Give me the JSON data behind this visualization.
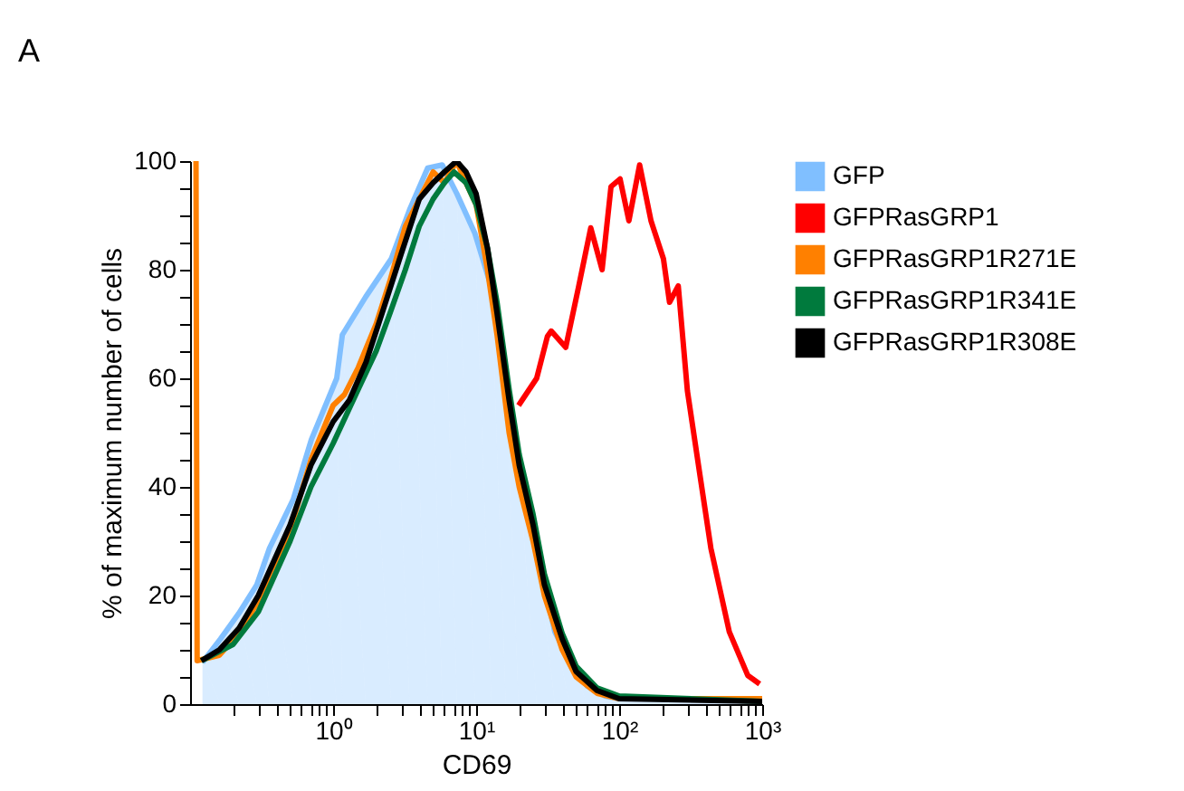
{
  "chart_data": {
    "type": "line",
    "title": "A",
    "xlabel": "CD69",
    "ylabel": "% of maximum number of cells",
    "log": "x",
    "xlim": [
      0.1,
      1000
    ],
    "ylim": [
      0,
      100
    ],
    "xticks": [
      {
        "value": 0.2,
        "label": null
      },
      {
        "value": 0.3,
        "label": null
      },
      {
        "value": 0.4,
        "label": null
      },
      {
        "value": 0.5,
        "label": null
      },
      {
        "value": 0.6,
        "label": null
      },
      {
        "value": 0.7,
        "label": null
      },
      {
        "value": 0.8,
        "label": null
      },
      {
        "value": 0.9,
        "label": null
      },
      {
        "value": 1,
        "label": "10⁰"
      },
      {
        "value": 2,
        "label": null
      },
      {
        "value": 3,
        "label": null
      },
      {
        "value": 4,
        "label": null
      },
      {
        "value": 5,
        "label": null
      },
      {
        "value": 6,
        "label": null
      },
      {
        "value": 7,
        "label": null
      },
      {
        "value": 8,
        "label": null
      },
      {
        "value": 9,
        "label": null
      },
      {
        "value": 10,
        "label": "10¹"
      },
      {
        "value": 20,
        "label": null
      },
      {
        "value": 30,
        "label": null
      },
      {
        "value": 40,
        "label": null
      },
      {
        "value": 50,
        "label": null
      },
      {
        "value": 60,
        "label": null
      },
      {
        "value": 70,
        "label": null
      },
      {
        "value": 80,
        "label": null
      },
      {
        "value": 90,
        "label": null
      },
      {
        "value": 100,
        "label": "10²"
      },
      {
        "value": 200,
        "label": null
      },
      {
        "value": 300,
        "label": null
      },
      {
        "value": 400,
        "label": null
      },
      {
        "value": 500,
        "label": null
      },
      {
        "value": 600,
        "label": null
      },
      {
        "value": 700,
        "label": null
      },
      {
        "value": 800,
        "label": null
      },
      {
        "value": 900,
        "label": null
      },
      {
        "value": 1000,
        "label": "10³"
      }
    ],
    "yticks": [
      0,
      {
        "value": 5,
        "label": null
      },
      {
        "value": 10,
        "label": null
      },
      {
        "value": 15,
        "label": null
      },
      20,
      {
        "value": 25,
        "label": null
      },
      {
        "value": 30,
        "label": null
      },
      {
        "value": 35,
        "label": null
      },
      40,
      {
        "value": 45,
        "label": null
      },
      {
        "value": 50,
        "label": null
      },
      {
        "value": 55,
        "label": null
      },
      60,
      {
        "value": 65,
        "label": null
      },
      {
        "value": 70,
        "label": null
      },
      {
        "value": 75,
        "label": null
      },
      80,
      {
        "value": 85,
        "label": null
      },
      {
        "value": 90,
        "label": null
      },
      {
        "value": 95,
        "label": null
      },
      100
    ],
    "grid": false,
    "legend": "right",
    "marker": "none",
    "line_style": "solid",
    "series": [
      {
        "name": "GFP",
        "type": "area",
        "color": "#80bfff",
        "x": [
          0.122,
          0.163,
          0.219,
          0.293,
          0.359,
          0.526,
          0.704,
          1.06,
          1.16,
          1.69,
          2.55,
          3.42,
          4.58,
          5.79,
          7.33,
          9.8,
          12.8,
          16.1,
          19.8,
          26.5,
          35.5,
          45,
          60,
          80,
          100,
          1000
        ],
        "values": [
          7.7,
          12,
          16.7,
          22,
          28.7,
          37.7,
          48.7,
          60,
          68,
          75,
          82,
          91,
          98.7,
          99.3,
          94,
          86.7,
          76.7,
          60,
          43.3,
          28.7,
          13.3,
          8,
          3.3,
          1.5,
          1,
          1
        ]
      },
      {
        "name": "GFPRasGRP1",
        "color": "#ff0000",
        "x": [
          19.8,
          26.5,
          31.5,
          33.5,
          42.3,
          51.9,
          63.3,
          76,
          87.7,
          101.5,
          117,
          139,
          167,
          204,
          225,
          259,
          300,
          368,
          438,
          589,
          792,
          960
        ],
        "values": [
          55,
          60,
          67.7,
          68.7,
          65.7,
          76.7,
          87.7,
          80,
          95.3,
          96.7,
          89,
          99.3,
          89,
          82,
          74,
          77,
          57.7,
          42,
          28.7,
          13.3,
          5.3,
          3.7
        ]
      },
      {
        "name": "GFPRasGRP1R271E",
        "color": "#ff8000",
        "x": [
          0.11,
          0.112,
          0.16,
          0.22,
          0.3,
          0.36,
          0.5,
          0.7,
          1.0,
          1.2,
          1.5,
          2.0,
          2.5,
          3.2,
          4.0,
          5.0,
          6.0,
          7.3,
          8.5,
          10,
          12,
          14,
          17,
          20,
          25,
          30,
          40,
          50,
          70,
          100,
          1000
        ],
        "values": [
          100,
          8,
          9,
          13,
          19,
          24,
          32,
          45,
          55,
          57,
          62,
          70,
          78,
          88,
          93,
          98,
          96,
          100,
          96,
          92,
          80,
          68,
          50,
          40,
          30,
          20,
          10,
          5,
          2,
          1,
          1
        ]
      },
      {
        "name": "GFPRasGRP1R341E",
        "color": "#007a3d",
        "x": [
          0.12,
          0.2,
          0.3,
          0.5,
          0.7,
          1.0,
          1.5,
          2,
          2.5,
          3.2,
          4,
          5,
          6,
          7,
          8.5,
          10,
          12,
          14,
          17,
          20,
          25,
          30,
          40,
          50,
          70,
          100,
          1000
        ],
        "values": [
          8,
          11,
          17,
          30,
          40,
          48,
          58,
          65,
          72,
          80,
          88,
          93,
          96,
          98,
          96,
          92,
          84,
          74,
          58,
          46,
          35,
          24,
          13,
          7,
          3,
          1.5,
          0.5
        ]
      },
      {
        "name": "GFPRasGRP1R308E",
        "color": "#000000",
        "x": [
          0.12,
          0.16,
          0.22,
          0.3,
          0.5,
          0.7,
          1.0,
          1.3,
          1.7,
          2.2,
          3,
          4,
          5,
          6,
          7.3,
          8.5,
          10,
          12,
          14,
          17,
          20,
          25,
          30,
          40,
          50,
          70,
          100,
          1000
        ],
        "values": [
          8,
          10,
          14,
          20,
          33,
          44,
          52,
          56,
          63,
          72,
          83,
          93,
          96,
          98,
          100,
          98,
          94,
          84,
          72,
          56,
          44,
          33,
          22,
          12,
          6,
          2.5,
          1,
          0.5
        ]
      }
    ]
  }
}
